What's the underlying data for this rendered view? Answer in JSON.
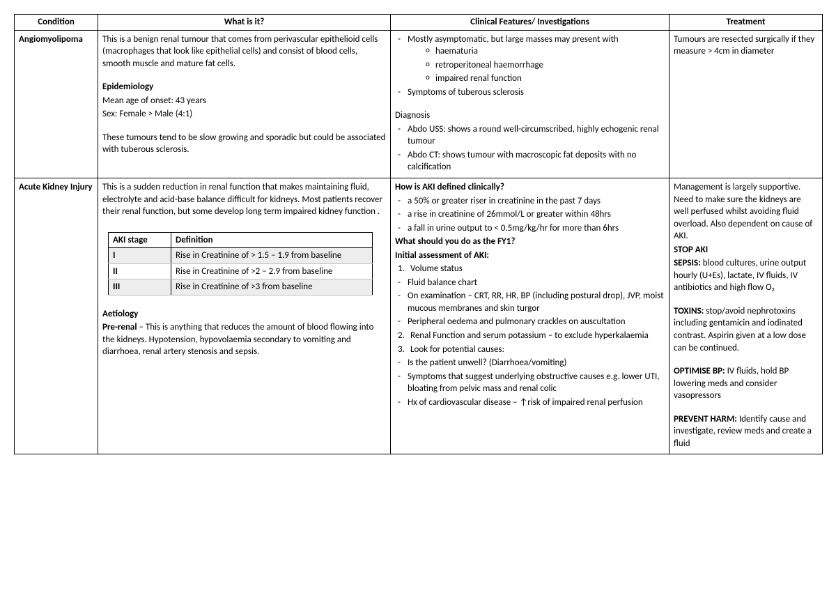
{
  "headers": {
    "condition": "Condition",
    "what": "What is it?",
    "clinical": "Clinical Features/ Investigations",
    "treatment": "Treatment"
  },
  "row1": {
    "condition": "Angiomyolipoma",
    "what": {
      "p1": "This is a benign renal tumour that comes from perivascular epithelioid cells (macrophages that look like epithelial cells) and consist of blood cells, smooth muscle and mature fat cells.",
      "epi_h": "Epidemiology",
      "epi1": "Mean age of onset: 43 years",
      "epi2": "Sex: Female > Male (4:1)",
      "p2": "These tumours tend to be slow growing and sporadic but could be associated with tuberous sclerosis."
    },
    "clin": {
      "l1": "Mostly asymptomatic, but large masses may present with",
      "s1": "haematuria",
      "s2": "retroperitoneal haemorrhage",
      "s3": "impaired renal function",
      "l2": "Symptoms of tuberous sclerosis",
      "diag_h": "Diagnosis",
      "d1": "Abdo USS: shows a round well-circumscribed, highly echogenic renal tumour",
      "d2": "Abdo CT: shows tumour with macroscopic fat deposits with no calcification"
    },
    "treat": "Tumours are resected surgically if they measure > 4cm in diameter"
  },
  "row2": {
    "condition": "Acute Kidney Injury",
    "what": {
      "p1": "This is a sudden reduction in renal function that makes maintaining fluid, electrolyte and acid-base balance difficult for kidneys. Most patients recover their renal function, but some develop long term impaired kidney function .",
      "stage_h1": "AKI stage",
      "stage_h2": "Definition",
      "s1a": "I",
      "s1b": "Rise in Creatinine of > 1.5 – 1.9 from baseline",
      "s2a": "II",
      "s2b": "Rise in Creatinine of >2 – 2.9 from baseline",
      "s3a": "III",
      "s3b": "Rise in Creatinine of >3 from baseline",
      "aet_h": "Aetiology",
      "aet_pre_lbl": "Pre-renal",
      "aet_pre": " – This is anything that reduces the amount of blood flowing into the kidneys. Hypotension, hypovolaemia secondary to vomiting and diarrhoea, renal artery stenosis and sepsis."
    },
    "clin": {
      "q1": "How is AKI defined clinically?",
      "d1": "a 50% or greater riser in creatinine in the past 7 days",
      "d2": "a rise in creatinine of 26mmol/L or greater within 48hrs",
      "d3": "a fall in urine output to < 0.5mg/kg/hr for more than 6hrs",
      "q2": "What should you do as the FY1?",
      "q3": "Initial assessment of AKI:",
      "n1": "Volume status",
      "b1": "Fluid balance chart",
      "b2": "On examination – CRT, RR, HR, BP (including postural drop), JVP, moist mucous membranes and skin turgor",
      "b3": "Peripheral oedema and pulmonary crackles on auscultation",
      "n2": "Renal Function and serum potassium – to exclude hyperkalaemia",
      "n3": "Look for potential causes:",
      "c1": "Is the patient unwell? (Diarrhoea/vomiting)",
      "c2": "Symptoms that suggest underlying obstructive causes e.g. lower UTI, bloating from pelvic mass and renal colic",
      "c3": "Hx of cardiovascular disease – ↑risk of impaired renal perfusion"
    },
    "treat": {
      "p1": "Management is largely supportive. Need to make sure the kidneys are well perfused whilst avoiding fluid overload. Also dependent on cause of AKI.",
      "h1": "STOP AKI",
      "sepsis_lbl": "SEPSIS:",
      "sepsis": " blood cultures, urine output hourly (U+Es), lactate, IV fluids, IV antibiotics and high flow O₂",
      "tox_lbl": "TOXINS:",
      "tox": " stop/avoid nephrotoxins including gentamicin and iodinated contrast. Aspirin given at a low dose can be continued.",
      "bp_lbl": "OPTIMISE BP:",
      "bp": " IV fluids, hold BP lowering meds and consider vasopressors",
      "ph_lbl": "PREVENT HARM:",
      "ph": " Identify cause and investigate, review meds and create a fluid"
    }
  }
}
